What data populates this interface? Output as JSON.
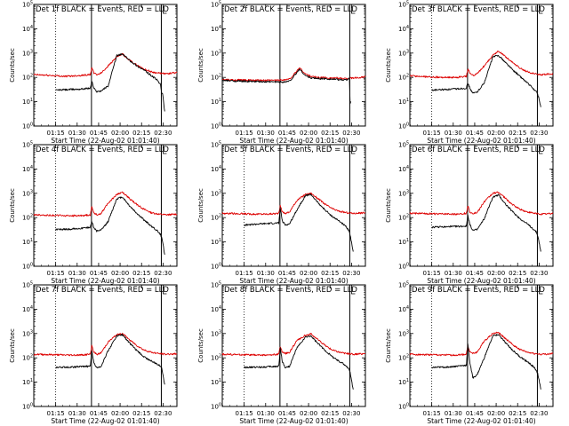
{
  "figure": {
    "x_tick_labels": [
      "01:15",
      "01:30",
      "01:45",
      "02:00",
      "02:15",
      "02:30"
    ],
    "x_label": "Start Time (22-Aug-02 01:01:40)",
    "y_label": "Counts/sec",
    "y_tick_labels": [
      {
        "base": "10",
        "exp": "0"
      },
      {
        "base": "10",
        "exp": "1"
      },
      {
        "base": "10",
        "exp": "2"
      },
      {
        "base": "10",
        "exp": "3"
      },
      {
        "base": "10",
        "exp": "4"
      },
      {
        "base": "10",
        "exp": "5"
      }
    ],
    "colors": {
      "events": "#000000",
      "lld": "#dd0000",
      "axes": "#000000",
      "background": "#ffffff"
    }
  },
  "chart_data": [
    {
      "title": "Det 1f BLACK = Events, RED = LLD",
      "type": "line",
      "xlim_min": [
        -2,
        98
      ],
      "ylog": true,
      "ylim": [
        1,
        100000
      ],
      "vlines_dotted_min": [
        13.3
      ],
      "vlines_solid_min": [
        38.3,
        87.1
      ],
      "series": [
        {
          "name": "Events",
          "color": "#000000",
          "x": [
            13.3,
            30,
            37.5,
            38.5,
            40,
            42,
            45,
            50,
            56,
            60,
            65,
            70,
            75,
            80,
            84,
            86.5,
            87.3,
            88,
            89.5
          ],
          "y": [
            30,
            33,
            36,
            70,
            35,
            26,
            28,
            45,
            800,
            900,
            500,
            300,
            200,
            120,
            80,
            50,
            25,
            20,
            4
          ]
        },
        {
          "name": "LLD",
          "color": "#dd0000",
          "x": [
            -2,
            10,
            20,
            30,
            37.5,
            38.5,
            40,
            42,
            45,
            50,
            56,
            60,
            65,
            70,
            75,
            80,
            85,
            90,
            95,
            98
          ],
          "y": [
            130,
            120,
            110,
            120,
            130,
            250,
            150,
            130,
            150,
            300,
            700,
            900,
            500,
            320,
            220,
            170,
            150,
            140,
            150,
            155
          ]
        }
      ]
    },
    {
      "title": "Det 2f BLACK = Events, RED = LLD",
      "type": "line",
      "xlim_min": [
        -2,
        98
      ],
      "ylog": true,
      "ylim": [
        1,
        100000
      ],
      "vlines_dotted_min": [],
      "vlines_solid_min": [
        38.3,
        87.1
      ],
      "series": [
        {
          "name": "Events",
          "color": "#000000",
          "x": [
            -2,
            10,
            20,
            30,
            38,
            40,
            42,
            45,
            48,
            52,
            56,
            60,
            65,
            70,
            75,
            80,
            85,
            86.8,
            87.3,
            88
          ],
          "y": [
            75,
            70,
            68,
            65,
            66,
            65,
            66,
            70,
            110,
            220,
            120,
            95,
            90,
            88,
            85,
            80,
            80,
            100,
            8,
            10
          ]
        },
        {
          "name": "LLD",
          "color": "#dd0000",
          "x": [
            -2,
            10,
            20,
            30,
            38,
            40,
            42,
            45,
            48,
            52,
            56,
            60,
            65,
            70,
            75,
            80,
            85,
            90,
            95,
            98
          ],
          "y": [
            80,
            78,
            76,
            75,
            78,
            80,
            80,
            85,
            130,
            250,
            140,
            110,
            100,
            98,
            95,
            92,
            90,
            95,
            100,
            105
          ]
        }
      ]
    },
    {
      "title": "Det 3f BLACK = Events, RED = LLD",
      "type": "line",
      "xlim_min": [
        -2,
        98
      ],
      "ylog": true,
      "ylim": [
        1,
        100000
      ],
      "vlines_dotted_min": [
        13.3
      ],
      "vlines_solid_min": [
        38.3,
        87.1
      ],
      "series": [
        {
          "name": "Events",
          "color": "#000000",
          "x": [
            13.3,
            25,
            37.5,
            38.5,
            40,
            42,
            45,
            50,
            56,
            60,
            65,
            70,
            75,
            80,
            84,
            86.5,
            87.3,
            88,
            89.5
          ],
          "y": [
            30,
            32,
            36,
            60,
            35,
            22,
            25,
            60,
            700,
            800,
            400,
            200,
            110,
            60,
            35,
            25,
            20,
            15,
            6
          ]
        },
        {
          "name": "LLD",
          "color": "#dd0000",
          "x": [
            -2,
            10,
            20,
            30,
            37.5,
            38.5,
            40,
            42,
            45,
            50,
            56,
            60,
            65,
            70,
            75,
            80,
            85,
            90,
            95,
            98
          ],
          "y": [
            115,
            105,
            100,
            100,
            110,
            220,
            150,
            120,
            140,
            300,
            800,
            1200,
            700,
            400,
            240,
            170,
            140,
            130,
            135,
            140
          ]
        }
      ]
    },
    {
      "title": "Det 4f BLACK = Events, RED = LLD",
      "type": "line",
      "xlim_min": [
        -2,
        98
      ],
      "ylog": true,
      "ylim": [
        1,
        100000
      ],
      "vlines_dotted_min": [
        13.3
      ],
      "vlines_solid_min": [
        38.3,
        87.1
      ],
      "series": [
        {
          "name": "Events",
          "color": "#000000",
          "x": [
            13.3,
            25,
            37.5,
            38.5,
            40,
            42,
            45,
            50,
            56,
            60,
            65,
            70,
            75,
            80,
            84,
            86.5,
            87.3,
            88,
            89.5
          ],
          "y": [
            32,
            34,
            40,
            70,
            38,
            28,
            30,
            70,
            600,
            700,
            300,
            150,
            80,
            45,
            30,
            20,
            15,
            10,
            3
          ]
        },
        {
          "name": "LLD",
          "color": "#dd0000",
          "x": [
            -2,
            10,
            20,
            30,
            37.5,
            38.5,
            40,
            42,
            45,
            50,
            56,
            60,
            65,
            70,
            75,
            80,
            85,
            90,
            95,
            98
          ],
          "y": [
            130,
            125,
            120,
            120,
            130,
            280,
            160,
            130,
            150,
            400,
            900,
            1100,
            600,
            350,
            220,
            160,
            140,
            130,
            135,
            140
          ]
        }
      ]
    },
    {
      "title": "Det 5f BLACK = Events, RED = LLD",
      "type": "line",
      "xlim_min": [
        -2,
        98
      ],
      "ylog": true,
      "ylim": [
        1,
        100000
      ],
      "vlines_dotted_min": [
        13.3
      ],
      "vlines_solid_min": [
        38.3,
        87.1
      ],
      "series": [
        {
          "name": "Events",
          "color": "#000000",
          "x": [
            13.3,
            25,
            37.5,
            38.5,
            40,
            42,
            45,
            50,
            56,
            60,
            65,
            70,
            75,
            80,
            84,
            86.5,
            87.3,
            88,
            89.5
          ],
          "y": [
            50,
            55,
            60,
            250,
            70,
            50,
            55,
            200,
            800,
            900,
            400,
            200,
            110,
            70,
            45,
            30,
            20,
            12,
            4
          ]
        },
        {
          "name": "LLD",
          "color": "#dd0000",
          "x": [
            -2,
            10,
            20,
            30,
            37.5,
            38.5,
            40,
            42,
            45,
            50,
            56,
            60,
            65,
            70,
            75,
            80,
            85,
            90,
            95,
            98
          ],
          "y": [
            150,
            145,
            140,
            140,
            150,
            300,
            170,
            150,
            170,
            500,
            900,
            1000,
            600,
            350,
            230,
            180,
            160,
            150,
            155,
            160
          ]
        }
      ]
    },
    {
      "title": "Det 6f BLACK = Events, RED = LLD",
      "type": "line",
      "xlim_min": [
        -2,
        98
      ],
      "ylog": true,
      "ylim": [
        1,
        100000
      ],
      "vlines_dotted_min": [
        13.3
      ],
      "vlines_solid_min": [
        38.3,
        87.1
      ],
      "series": [
        {
          "name": "Events",
          "color": "#000000",
          "x": [
            13.3,
            25,
            37.5,
            38.5,
            40,
            42,
            45,
            50,
            56,
            60,
            65,
            70,
            75,
            80,
            84,
            86.5,
            87.3,
            88,
            89.5
          ],
          "y": [
            40,
            42,
            45,
            120,
            50,
            30,
            32,
            90,
            700,
            850,
            350,
            170,
            90,
            55,
            35,
            25,
            18,
            12,
            4
          ]
        },
        {
          "name": "LLD",
          "color": "#dd0000",
          "x": [
            -2,
            10,
            20,
            30,
            37.5,
            38.5,
            40,
            42,
            45,
            50,
            56,
            60,
            65,
            70,
            75,
            80,
            85,
            90,
            95,
            98
          ],
          "y": [
            150,
            145,
            140,
            140,
            150,
            300,
            170,
            150,
            160,
            450,
            1000,
            1100,
            600,
            330,
            220,
            170,
            150,
            140,
            145,
            150
          ]
        }
      ]
    },
    {
      "title": "Det 7f BLACK = Events, RED = LLD",
      "type": "line",
      "xlim_min": [
        -2,
        98
      ],
      "ylog": true,
      "ylim": [
        1,
        100000
      ],
      "vlines_dotted_min": [
        13.3
      ],
      "vlines_solid_min": [
        38.3,
        87.1
      ],
      "series": [
        {
          "name": "Events",
          "color": "#000000",
          "x": [
            13.3,
            25,
            37.5,
            38.5,
            40,
            42,
            45,
            50,
            56,
            60,
            65,
            70,
            75,
            80,
            84,
            86.5,
            87.3,
            88,
            89.5
          ],
          "y": [
            40,
            42,
            45,
            200,
            60,
            40,
            45,
            200,
            800,
            900,
            400,
            200,
            110,
            75,
            55,
            45,
            40,
            25,
            8
          ]
        },
        {
          "name": "LLD",
          "color": "#dd0000",
          "x": [
            -2,
            10,
            20,
            30,
            37.5,
            38.5,
            40,
            42,
            45,
            50,
            56,
            60,
            65,
            70,
            75,
            80,
            85,
            90,
            95,
            98
          ],
          "y": [
            140,
            135,
            130,
            130,
            140,
            320,
            170,
            140,
            160,
            450,
            900,
            1000,
            550,
            320,
            210,
            170,
            150,
            140,
            145,
            150
          ]
        }
      ]
    },
    {
      "title": "Det 8f BLACK = Events, RED = LLD",
      "type": "line",
      "xlim_min": [
        -2,
        98
      ],
      "ylog": true,
      "ylim": [
        1,
        100000
      ],
      "vlines_dotted_min": [
        13.3
      ],
      "vlines_solid_min": [
        38.3,
        87.1
      ],
      "series": [
        {
          "name": "Events",
          "color": "#000000",
          "x": [
            13.3,
            25,
            37.5,
            38.5,
            40,
            42,
            45,
            50,
            56,
            60,
            65,
            70,
            75,
            80,
            84,
            86.5,
            87.3,
            88,
            89.5
          ],
          "y": [
            40,
            42,
            45,
            250,
            70,
            40,
            45,
            250,
            700,
            800,
            380,
            200,
            110,
            70,
            50,
            35,
            25,
            15,
            5
          ]
        },
        {
          "name": "LLD",
          "color": "#dd0000",
          "x": [
            -2,
            10,
            20,
            30,
            37.5,
            38.5,
            40,
            42,
            45,
            50,
            56,
            60,
            65,
            70,
            75,
            80,
            85,
            90,
            95,
            98
          ],
          "y": [
            140,
            135,
            130,
            130,
            140,
            300,
            170,
            150,
            170,
            500,
            850,
            950,
            550,
            320,
            210,
            170,
            150,
            140,
            145,
            150
          ]
        }
      ]
    },
    {
      "title": "Det 9f BLACK = Events, RED = LLD",
      "type": "line",
      "xlim_min": [
        -2,
        98
      ],
      "ylog": true,
      "ylim": [
        1,
        100000
      ],
      "vlines_dotted_min": [
        13.3
      ],
      "vlines_solid_min": [
        38.3,
        87.1
      ],
      "series": [
        {
          "name": "Events",
          "color": "#000000",
          "x": [
            13.3,
            25,
            37.5,
            38.5,
            40,
            42,
            45,
            50,
            56,
            60,
            65,
            70,
            75,
            80,
            84,
            86.5,
            87.3,
            88,
            89.5
          ],
          "y": [
            40,
            42,
            50,
            350,
            60,
            15,
            20,
            100,
            800,
            900,
            400,
            200,
            110,
            70,
            45,
            30,
            22,
            15,
            5
          ]
        },
        {
          "name": "LLD",
          "color": "#dd0000",
          "x": [
            -2,
            10,
            20,
            30,
            37.5,
            38.5,
            40,
            42,
            45,
            50,
            56,
            60,
            65,
            70,
            75,
            80,
            85,
            90,
            95,
            98
          ],
          "y": [
            140,
            135,
            130,
            130,
            140,
            330,
            170,
            150,
            170,
            500,
            1000,
            1100,
            600,
            340,
            220,
            170,
            150,
            140,
            145,
            150
          ]
        }
      ]
    }
  ]
}
